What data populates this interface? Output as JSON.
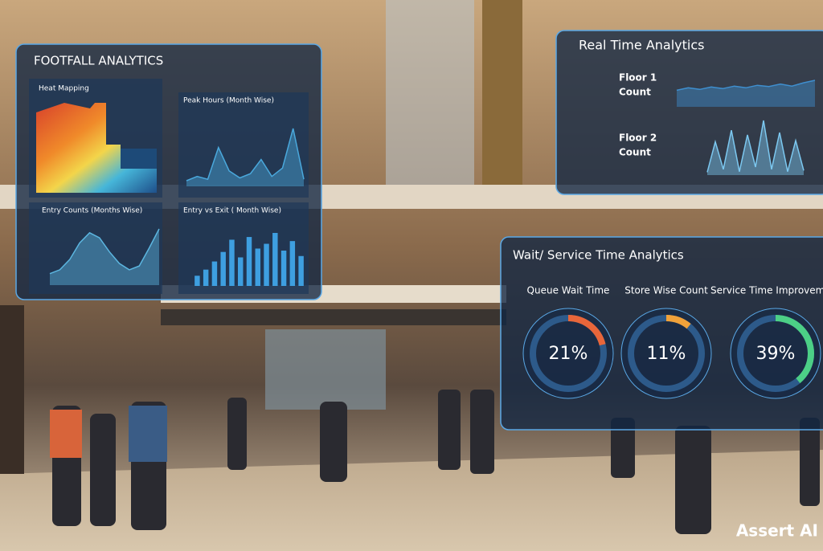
{
  "footfall": {
    "title": "FOOTFALL ANALYTICS",
    "heat_mapping": {
      "label": "Heat Mapping"
    },
    "peak_hours": {
      "label": "Peak Hours (Month Wise)",
      "values": [
        8,
        14,
        10,
        55,
        22,
        12,
        18,
        38,
        14,
        26,
        82,
        10
      ]
    },
    "entry_counts": {
      "label": "Entry Counts (Months Wise)",
      "values": [
        18,
        24,
        40,
        66,
        82,
        74,
        52,
        34,
        24,
        30,
        58,
        88
      ]
    },
    "entry_vs_exit": {
      "label": "Entry vs Exit ( Month Wise)",
      "values": [
        15,
        24,
        36,
        50,
        68,
        42,
        72,
        55,
        62,
        78,
        52,
        66,
        44
      ]
    }
  },
  "realtime": {
    "title": "Real Time Analytics",
    "floor1": {
      "label": [
        "Floor 1",
        "Count"
      ],
      "values": [
        40,
        46,
        42,
        48,
        44,
        50,
        46,
        52,
        49,
        55,
        50,
        58,
        64
      ]
    },
    "floor2": {
      "label": [
        "Floor 2",
        "Count"
      ],
      "values": [
        5,
        58,
        10,
        78,
        6,
        70,
        14,
        95,
        10,
        74,
        6,
        60,
        8
      ]
    }
  },
  "wait": {
    "title": "Wait/ Service Time Analytics",
    "gauges": [
      {
        "label": "Queue Wait Time",
        "value": 21,
        "value_label": "21%",
        "color": "#e8663a"
      },
      {
        "label": "Store Wise Count",
        "value": 11,
        "value_label": "11%",
        "color": "#f0a23a"
      },
      {
        "label": "Service Time Improvement",
        "value": 39,
        "value_label": "39%",
        "color": "#4ccf86"
      }
    ]
  },
  "logo": "Assert AI"
}
